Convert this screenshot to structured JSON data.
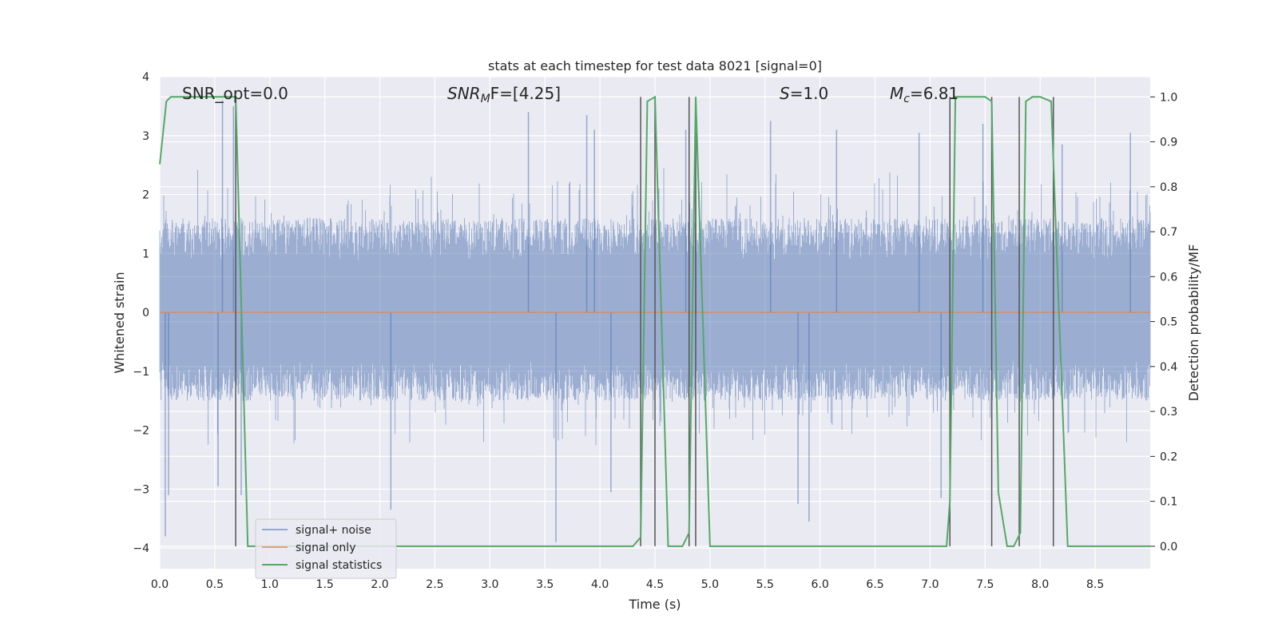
{
  "chart_data": {
    "type": "line",
    "title": "stats at each timestep for test data 8021 [signal=0]",
    "xlabel": "Time (s)",
    "ylabel": "Whitened strain",
    "y2label": "Detection probability/MF",
    "xlim": [
      0.0,
      9.0
    ],
    "ylim": [
      -4.35,
      4.0
    ],
    "y2lim": [
      -0.05,
      1.045
    ],
    "xticks": [
      "0.0",
      "0.5",
      "1.0",
      "1.5",
      "2.0",
      "2.5",
      "3.0",
      "3.5",
      "4.0",
      "4.5",
      "5.0",
      "5.5",
      "6.0",
      "6.5",
      "7.0",
      "7.5",
      "8.0",
      "8.5"
    ],
    "yticks": [
      "4",
      "3",
      "2",
      "1",
      "0",
      "−1",
      "−2",
      "−3",
      "−4"
    ],
    "y2ticks": [
      "1.0",
      "0.9",
      "0.8",
      "0.7",
      "0.6",
      "0.5",
      "0.4",
      "0.3",
      "0.2",
      "0.1",
      "0.0"
    ],
    "grid": true,
    "colors": {
      "background": "#eaeaf2",
      "signal_noise": "#4c72b0",
      "signal_only": "#dd8452",
      "statistics": "#55a868",
      "vlines": "#555555"
    },
    "annotations": {
      "snr_opt": "SNR_opt=0.0",
      "snr_mf_main": "SNR",
      "snr_mf_sub": "M",
      "snr_mf_rest": "F=[4.25]",
      "s_main": "S",
      "s_rest": "=1.0",
      "mc_main": "M",
      "mc_sub": "c",
      "mc_rest": "=6.81"
    },
    "legend": {
      "placement": "lower-left",
      "entries": [
        "signal+ noise",
        "signal only",
        "signal statistics"
      ]
    },
    "series": [
      {
        "name": "signal+ noise",
        "kind": "noise",
        "x_range": [
          0.0,
          9.0
        ],
        "typical_envelope": [
          -1.5,
          1.6
        ],
        "peak_values": [
          [
            0.05,
            -3.8
          ],
          [
            0.08,
            -3.1
          ],
          [
            0.57,
            3.6
          ],
          [
            0.53,
            -2.95
          ],
          [
            0.67,
            3.5
          ],
          [
            0.74,
            -3.1
          ],
          [
            2.1,
            -3.35
          ],
          [
            3.35,
            3.4
          ],
          [
            3.6,
            -3.9
          ],
          [
            3.88,
            3.35
          ],
          [
            3.95,
            3.1
          ],
          [
            4.1,
            -3.05
          ],
          [
            4.78,
            3.1
          ],
          [
            4.87,
            2.9
          ],
          [
            5.55,
            3.25
          ],
          [
            5.9,
            -3.55
          ],
          [
            5.8,
            -3.25
          ],
          [
            6.15,
            3.1
          ],
          [
            6.9,
            3.05
          ],
          [
            7.1,
            -3.15
          ],
          [
            7.48,
            3.2
          ],
          [
            8.82,
            3.05
          ],
          [
            8.2,
            2.85
          ]
        ]
      },
      {
        "name": "signal only",
        "kind": "flat",
        "x": [
          0.0,
          9.0
        ],
        "y": [
          0.0,
          0.0
        ]
      },
      {
        "name": "signal statistics",
        "kind": "probability",
        "x": [
          0.0,
          0.06,
          0.1,
          0.35,
          0.6,
          0.69,
          0.8,
          4.3,
          4.37,
          4.43,
          4.5,
          4.62,
          4.75,
          4.81,
          4.87,
          5.0,
          7.15,
          7.18,
          7.23,
          7.5,
          7.56,
          7.62,
          7.7,
          7.76,
          7.82,
          7.87,
          7.93,
          8.0,
          8.1,
          8.25,
          8.32,
          9.0
        ],
        "y": [
          0.85,
          0.99,
          1.0,
          1.0,
          1.0,
          1.0,
          0.0,
          0.0,
          0.02,
          0.99,
          1.0,
          0.0,
          0.0,
          0.03,
          1.0,
          0.0,
          0.0,
          0.1,
          1.0,
          1.0,
          0.99,
          0.12,
          0.0,
          0.0,
          0.03,
          0.99,
          1.0,
          1.0,
          0.99,
          0.0,
          0.0,
          0.0
        ]
      }
    ],
    "vlines": [
      0.69,
      4.37,
      4.5,
      4.81,
      4.87,
      7.18,
      7.56,
      7.81,
      8.12
    ]
  }
}
